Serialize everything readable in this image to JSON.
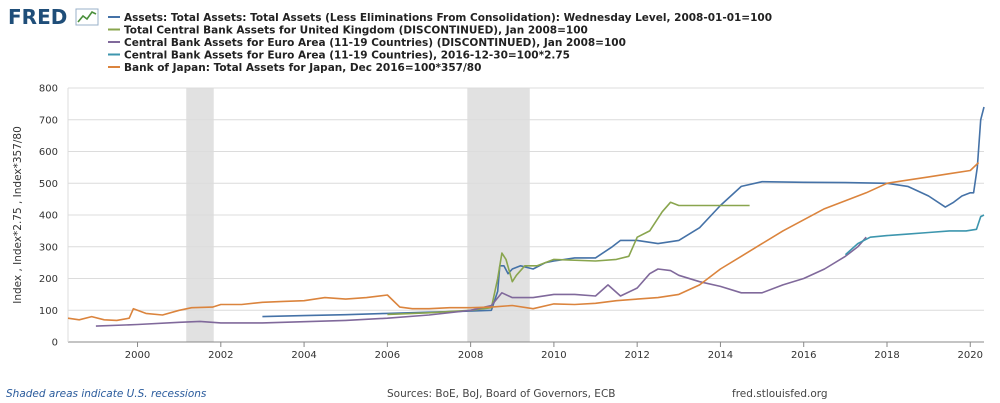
{
  "logo": {
    "text": "FRED"
  },
  "footer": {
    "recession_note": "Shaded areas indicate U.S. recessions",
    "sources": "Sources: BoE, BoJ, Board of Governors, ECB",
    "site": "fred.stlouisfed.org"
  },
  "chart_data": {
    "type": "line",
    "title": "",
    "ylabel": "Index , Index*2.75 , Index*357/80",
    "xlabel": "",
    "xlim": [
      1998.33,
      2020.33
    ],
    "ylim": [
      0,
      800
    ],
    "x_ticks": [
      {
        "value": 2000,
        "label": "2000"
      },
      {
        "value": 2002,
        "label": "2002"
      },
      {
        "value": 2004,
        "label": "2004"
      },
      {
        "value": 2006,
        "label": "2006"
      },
      {
        "value": 2008,
        "label": "2008"
      },
      {
        "value": 2010,
        "label": "2010"
      },
      {
        "value": 2012,
        "label": "2012"
      },
      {
        "value": 2014,
        "label": "2014"
      },
      {
        "value": 2016,
        "label": "2016"
      },
      {
        "value": 2018,
        "label": "2018"
      },
      {
        "value": 2020,
        "label": "2020"
      }
    ],
    "y_ticks": [
      0,
      100,
      200,
      300,
      400,
      500,
      600,
      700,
      800
    ],
    "grid": "horizontal",
    "legend_position": "top-left",
    "recessions": [
      [
        2001.17,
        2001.83
      ],
      [
        2007.92,
        2009.42
      ]
    ],
    "series": [
      {
        "name": "Assets: Total Assets: Total Assets (Less Eliminations From Consolidation): Wednesday Level, 2008-01-01=100",
        "color": "#4572a7",
        "points": [
          [
            2003.0,
            80
          ],
          [
            2004,
            83
          ],
          [
            2005,
            86
          ],
          [
            2006,
            90
          ],
          [
            2007,
            94
          ],
          [
            2007.9,
            97
          ],
          [
            2008.5,
            100
          ],
          [
            2008.65,
            160
          ],
          [
            2008.7,
            240
          ],
          [
            2008.8,
            240
          ],
          [
            2008.9,
            215
          ],
          [
            2009,
            230
          ],
          [
            2009.2,
            240
          ],
          [
            2009.5,
            230
          ],
          [
            2009.8,
            250
          ],
          [
            2010,
            255
          ],
          [
            2010.5,
            265
          ],
          [
            2011,
            265
          ],
          [
            2011.4,
            300
          ],
          [
            2011.6,
            320
          ],
          [
            2012,
            320
          ],
          [
            2012.5,
            310
          ],
          [
            2013,
            320
          ],
          [
            2013.5,
            360
          ],
          [
            2014,
            430
          ],
          [
            2014.5,
            490
          ],
          [
            2015,
            505
          ],
          [
            2016,
            503
          ],
          [
            2017,
            502
          ],
          [
            2018,
            500
          ],
          [
            2018.5,
            490
          ],
          [
            2019,
            460
          ],
          [
            2019.4,
            425
          ],
          [
            2019.6,
            440
          ],
          [
            2019.8,
            460
          ],
          [
            2020.0,
            470
          ],
          [
            2020.08,
            470
          ],
          [
            2020.17,
            550
          ],
          [
            2020.25,
            700
          ],
          [
            2020.33,
            740
          ]
        ]
      },
      {
        "name": "Total Central Bank Assets for United Kingdom (DISCONTINUED), Jan 2008=100",
        "color": "#89a54e",
        "points": [
          [
            2006,
            87
          ],
          [
            2007,
            92
          ],
          [
            2008,
            100
          ],
          [
            2008.5,
            108
          ],
          [
            2008.65,
            200
          ],
          [
            2008.75,
            280
          ],
          [
            2008.85,
            260
          ],
          [
            2009,
            190
          ],
          [
            2009.1,
            210
          ],
          [
            2009.3,
            240
          ],
          [
            2009.6,
            240
          ],
          [
            2010,
            260
          ],
          [
            2011,
            255
          ],
          [
            2011.5,
            260
          ],
          [
            2011.8,
            270
          ],
          [
            2012,
            330
          ],
          [
            2012.3,
            350
          ],
          [
            2012.6,
            410
          ],
          [
            2012.8,
            440
          ],
          [
            2013,
            430
          ],
          [
            2013.5,
            430
          ],
          [
            2014,
            430
          ],
          [
            2014.7,
            430
          ]
        ]
      },
      {
        "name": "Central Bank Assets for Euro Area (11-19 Countries) (DISCONTINUED), Jan 2008=100",
        "color": "#80699b",
        "points": [
          [
            1999.0,
            50
          ],
          [
            2000,
            55
          ],
          [
            2001,
            62
          ],
          [
            2001.5,
            65
          ],
          [
            2002,
            60
          ],
          [
            2003,
            60
          ],
          [
            2004,
            64
          ],
          [
            2005,
            68
          ],
          [
            2006,
            75
          ],
          [
            2007,
            85
          ],
          [
            2008,
            100
          ],
          [
            2008.5,
            115
          ],
          [
            2008.75,
            155
          ],
          [
            2009,
            140
          ],
          [
            2009.5,
            140
          ],
          [
            2010,
            150
          ],
          [
            2010.5,
            150
          ],
          [
            2011,
            145
          ],
          [
            2011.3,
            180
          ],
          [
            2011.6,
            145
          ],
          [
            2012,
            170
          ],
          [
            2012.3,
            215
          ],
          [
            2012.5,
            230
          ],
          [
            2012.8,
            225
          ],
          [
            2013,
            210
          ],
          [
            2013.5,
            190
          ],
          [
            2014,
            175
          ],
          [
            2014.5,
            155
          ],
          [
            2015,
            155
          ],
          [
            2015.5,
            180
          ],
          [
            2016,
            200
          ],
          [
            2016.5,
            230
          ],
          [
            2017,
            270
          ],
          [
            2017.3,
            300
          ],
          [
            2017.5,
            330
          ]
        ]
      },
      {
        "name": "Central Bank Assets for Euro Area (11-19 Countries), 2016-12-30=100*2.75",
        "color": "#3d96ae",
        "points": [
          [
            2017.0,
            275
          ],
          [
            2017.3,
            310
          ],
          [
            2017.6,
            330
          ],
          [
            2018,
            335
          ],
          [
            2018.5,
            340
          ],
          [
            2019,
            345
          ],
          [
            2019.5,
            350
          ],
          [
            2019.9,
            350
          ],
          [
            2020.15,
            355
          ],
          [
            2020.25,
            395
          ],
          [
            2020.33,
            400
          ]
        ]
      },
      {
        "name": "Bank of Japan: Total Assets for Japan, Dec 2016=100*357/80",
        "color": "#db843d",
        "points": [
          [
            1998.33,
            75
          ],
          [
            1998.6,
            70
          ],
          [
            1998.9,
            80
          ],
          [
            1999.2,
            70
          ],
          [
            1999.5,
            68
          ],
          [
            1999.8,
            75
          ],
          [
            1999.9,
            105
          ],
          [
            2000.2,
            90
          ],
          [
            2000.6,
            85
          ],
          [
            2001,
            100
          ],
          [
            2001.3,
            108
          ],
          [
            2001.8,
            110
          ],
          [
            2002,
            118
          ],
          [
            2002.5,
            118
          ],
          [
            2003,
            125
          ],
          [
            2003.5,
            128
          ],
          [
            2004,
            130
          ],
          [
            2004.5,
            140
          ],
          [
            2005,
            135
          ],
          [
            2005.5,
            140
          ],
          [
            2006,
            148
          ],
          [
            2006.3,
            110
          ],
          [
            2006.6,
            105
          ],
          [
            2007,
            105
          ],
          [
            2007.5,
            108
          ],
          [
            2008,
            108
          ],
          [
            2008.5,
            110
          ],
          [
            2009,
            115
          ],
          [
            2009.5,
            105
          ],
          [
            2010,
            120
          ],
          [
            2010.5,
            118
          ],
          [
            2011,
            122
          ],
          [
            2011.5,
            130
          ],
          [
            2012,
            135
          ],
          [
            2012.5,
            140
          ],
          [
            2013,
            150
          ],
          [
            2013.5,
            180
          ],
          [
            2014,
            230
          ],
          [
            2014.5,
            270
          ],
          [
            2015,
            310
          ],
          [
            2015.5,
            350
          ],
          [
            2016,
            385
          ],
          [
            2016.5,
            420
          ],
          [
            2017,
            445
          ],
          [
            2017.5,
            470
          ],
          [
            2018,
            500
          ],
          [
            2018.5,
            510
          ],
          [
            2019,
            520
          ],
          [
            2019.5,
            530
          ],
          [
            2020,
            540
          ],
          [
            2020.2,
            565
          ]
        ]
      }
    ]
  }
}
